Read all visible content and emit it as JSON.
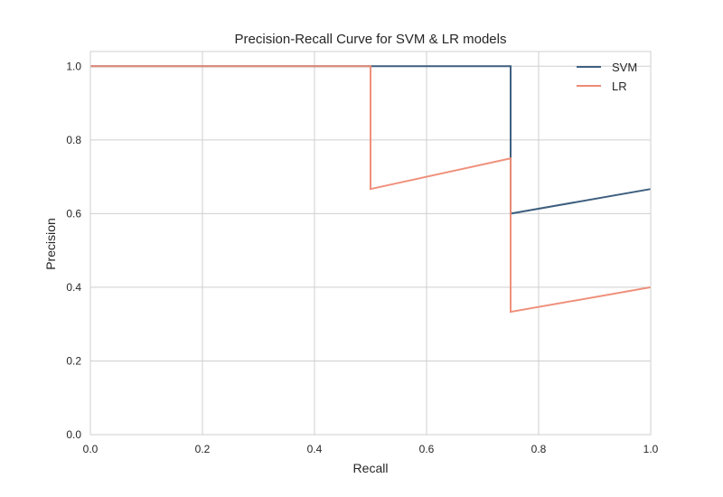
{
  "chart_data": {
    "type": "line",
    "title": "Precision-Recall Curve for SVM & LR models",
    "xlabel": "Recall",
    "ylabel": "Precision",
    "xlim": [
      0,
      1
    ],
    "ylim": [
      0,
      1.04
    ],
    "xticks": [
      0,
      0.2,
      0.4,
      0.6,
      0.8,
      1.0
    ],
    "yticks": [
      0,
      0.2,
      0.4,
      0.6,
      0.8,
      1.0
    ],
    "xtick_labels": [
      "0.0",
      "0.2",
      "0.4",
      "0.6",
      "0.8",
      "1.0"
    ],
    "ytick_labels": [
      "0.0",
      "0.2",
      "0.4",
      "0.6",
      "0.8",
      "1.0"
    ],
    "grid": true,
    "legend_position": "top-right",
    "series": [
      {
        "name": "SVM",
        "color": "#3e5f7f",
        "x": [
          0.0,
          0.75,
          0.75,
          1.0
        ],
        "y": [
          1.0,
          1.0,
          0.6,
          0.6667
        ]
      },
      {
        "name": "LR",
        "color": "#ee8a75",
        "x": [
          0.0,
          0.5,
          0.5,
          0.75,
          0.75,
          1.0
        ],
        "y": [
          1.0,
          1.0,
          0.6667,
          0.75,
          0.3333,
          0.4
        ]
      }
    ]
  }
}
